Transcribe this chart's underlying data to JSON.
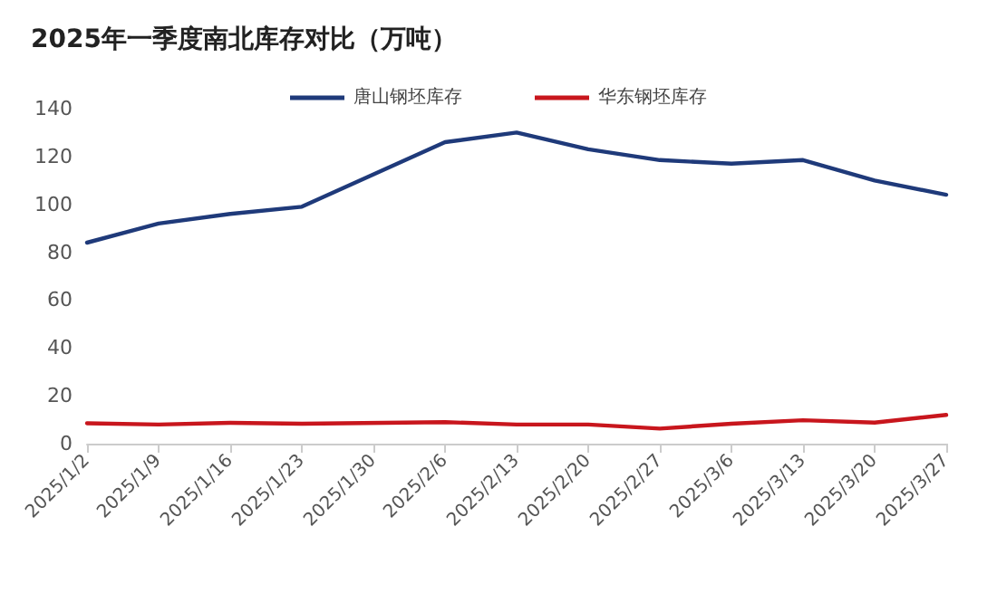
{
  "chart_data": {
    "type": "line",
    "title": "2025年一季度南北库存对比（万吨）",
    "categories": [
      "2025/1/2",
      "2025/1/9",
      "2025/1/16",
      "2025/1/23",
      "2025/1/30",
      "2025/2/6",
      "2025/2/13",
      "2025/2/20",
      "2025/2/27",
      "2025/3/6",
      "2025/3/13",
      "2025/3/20",
      "2025/3/27"
    ],
    "series": [
      {
        "name": "唐山钢坯库存",
        "color": "#1f3a7a",
        "values": [
          84,
          92,
          96,
          99,
          null,
          126,
          130,
          123,
          118.5,
          117,
          118.5,
          110,
          104
        ]
      },
      {
        "name": "华东钢坯库存",
        "color": "#c8161d",
        "values": [
          8.5,
          8,
          8.7,
          8.3,
          null,
          9,
          8,
          8,
          6.3,
          8.3,
          9.8,
          8.8,
          12
        ]
      }
    ],
    "ylim": [
      0,
      140
    ],
    "yticks": [
      0,
      20,
      40,
      60,
      80,
      100,
      120,
      140
    ],
    "grid": false,
    "legend": "top",
    "marker": "none",
    "line_style": "solid"
  }
}
